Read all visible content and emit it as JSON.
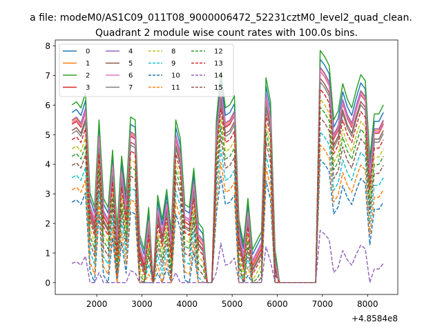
{
  "figure": {
    "suptitle": "a file: modeM0/AS1C09_011T08_9000006472_52231cztM0_level2_quad_clean.",
    "title": "Quadrant 2 module wise count rates with 100.0s bins.",
    "x_offset_label": "+4.8584e8"
  },
  "chart_data": {
    "type": "line",
    "title": "Quadrant 2 module wise count rates with 100.0s bins.",
    "xlabel": "",
    "ylabel": "",
    "xlim": [
      1080,
      8670
    ],
    "ylim": [
      -0.4,
      8.2
    ],
    "x_offset": 485840000,
    "xticks": [
      2000,
      3000,
      4000,
      5000,
      6000,
      7000,
      8000
    ],
    "yticks": [
      0,
      1,
      2,
      3,
      4,
      5,
      6,
      7,
      8
    ],
    "x": [
      1450,
      1550,
      1650,
      1750,
      1850,
      1950,
      2050,
      2150,
      2250,
      2350,
      2450,
      2550,
      2650,
      2750,
      2850,
      2950,
      3050,
      3150,
      3250,
      3350,
      3450,
      3550,
      3650,
      3750,
      3850,
      3950,
      4050,
      4150,
      4250,
      4350,
      4450,
      4550,
      4650,
      4750,
      4850,
      4950,
      5050,
      5150,
      5250,
      5350,
      5450,
      5550,
      5650,
      5750,
      5850,
      5950,
      6050,
      6150,
      6250,
      6350,
      6450,
      6550,
      6650,
      6750,
      6850,
      6950,
      7050,
      7150,
      7250,
      7350,
      7450,
      7550,
      7650,
      7750,
      7850,
      7950,
      8050,
      8150,
      8250,
      8350
    ],
    "legend": {
      "placement": "top-left",
      "columns": 4
    },
    "series": [
      {
        "name": "0",
        "color": "#1f77b4",
        "dash": "solid",
        "offset": 0.35,
        "scale": 1.0
      },
      {
        "name": "1",
        "color": "#ff7f0e",
        "dash": "solid",
        "offset": 0.05,
        "scale": 1.0
      },
      {
        "name": "2",
        "color": "#2ca02c",
        "dash": "solid",
        "offset": 0.5,
        "scale": 1.02
      },
      {
        "name": "3",
        "color": "#d62728",
        "dash": "solid",
        "offset": -0.05,
        "scale": 1.0
      },
      {
        "name": "4",
        "color": "#9467bd",
        "dash": "solid",
        "offset": 0.15,
        "scale": 0.99
      },
      {
        "name": "5",
        "color": "#8c564b",
        "dash": "solid",
        "offset": -0.15,
        "scale": 0.98
      },
      {
        "name": "6",
        "color": "#e377c2",
        "dash": "solid",
        "offset": 0.1,
        "scale": 0.98
      },
      {
        "name": "7",
        "color": "#7f7f7f",
        "dash": "solid",
        "offset": -0.2,
        "scale": 0.97
      },
      {
        "name": "8",
        "color": "#bcbd22",
        "dash": "dashed",
        "offset": -0.5,
        "scale": 0.93
      },
      {
        "name": "9",
        "color": "#17becf",
        "dash": "dashed",
        "offset": -1.1,
        "scale": 0.86
      },
      {
        "name": "10",
        "color": "#1f77b4",
        "dash": "dashed",
        "offset": -1.6,
        "scale": 0.8
      },
      {
        "name": "11",
        "color": "#ff7f0e",
        "dash": "dashed",
        "offset": -1.4,
        "scale": 0.84
      },
      {
        "name": "12",
        "color": "#2ca02c",
        "dash": "dashed",
        "offset": -0.7,
        "scale": 0.92
      },
      {
        "name": "13",
        "color": "#d62728",
        "dash": "dashed",
        "offset": -0.3,
        "scale": 0.95
      },
      {
        "name": "14",
        "color": "#9467bd",
        "dash": "dashed",
        "offset": -2.7,
        "scale": 0.62
      },
      {
        "name": "15",
        "color": "#8c564b",
        "dash": "dashed",
        "offset": -0.9,
        "scale": 0.9
      }
    ],
    "base_profile": [
      5.4,
      5.5,
      5.3,
      5.8,
      2.5,
      2.0,
      4.9,
      2.3,
      2.0,
      3.9,
      1.3,
      3.7,
      2.4,
      5.0,
      4.9,
      1.1,
      0.6,
      2.0,
      0.0,
      2.4,
      1.6,
      2.6,
      1.2,
      4.9,
      4.3,
      2.1,
      2.0,
      3.3,
      1.5,
      1.3,
      0.0,
      0.0,
      4.9,
      6.5,
      5.3,
      5.4,
      5.7,
      1.6,
      0.8,
      2.3,
      0.6,
      0.9,
      1.2,
      6.3,
      5.5,
      0.6,
      0.0,
      0.0,
      0.0,
      0.0,
      0.0,
      0.0,
      0.0,
      0.0,
      0.0,
      7.2,
      7.0,
      6.7,
      4.9,
      5.2,
      6.1,
      5.6,
      5.3,
      5.9,
      6.4,
      6.2,
      3.6,
      5.1,
      5.1,
      5.4
    ]
  }
}
